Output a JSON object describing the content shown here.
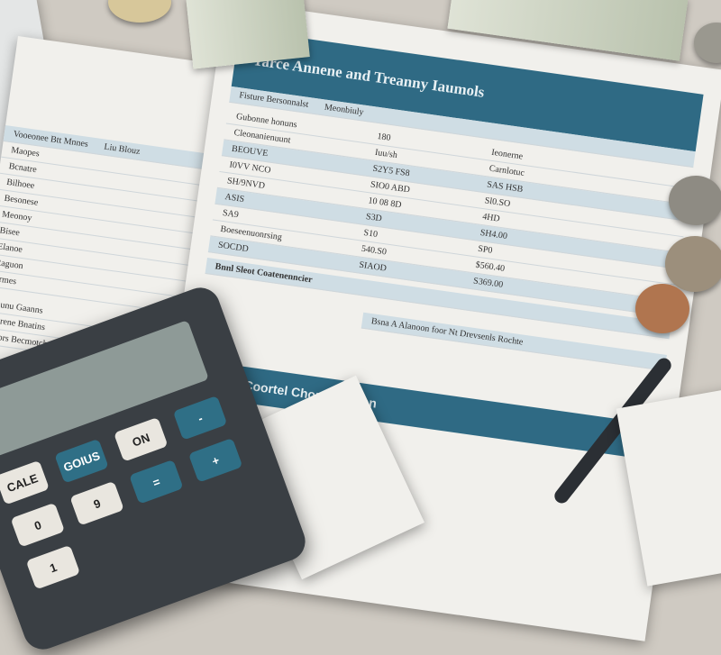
{
  "document": {
    "title": "Tarce Annene and Treanny Iaumols",
    "subheader_left": "Fisture Bersonnalst",
    "subheader_right": "Meonbiuly",
    "section": "Coortel Chore Tlo Han",
    "sub_section": "Bnnl Sleot Coatenenncier",
    "band2": "Bsna A Alanoon foor Nt Drevsenls Rochte",
    "rows": [
      [
        "Gubonne honuns",
        "180",
        "Ieonerne"
      ],
      [
        "Cleonanienuunt",
        "Iuu/sh",
        "Carnlotuc"
      ],
      [
        "BEOUVE",
        "S2Y5 FS8",
        "SAS HSB"
      ],
      [
        "I0VV NCO",
        "SIO0 ABD",
        "Sl0.SO"
      ],
      [
        "SH/9NVD",
        "10 08 8D",
        "4HD"
      ],
      [
        "ASIS",
        "S3D",
        "SH4.00"
      ],
      [
        "SA9",
        "S10",
        "SP0"
      ],
      [
        "Boeseenuonrsing",
        "540.S0",
        "$560.40"
      ],
      [
        "SOCDD",
        "SIAOD",
        "S369.00"
      ]
    ]
  },
  "left_sheet": {
    "header": "Vooeonee Btt Mnnes",
    "header2": "Liu Blouz",
    "rows": [
      "Maopes",
      "Bcnatre",
      "Bilhoee",
      "Besonese",
      "Meonoy",
      "Bisee",
      "Elanoe",
      "Raguon",
      "Brmes"
    ],
    "footer": [
      "Oounu Gaanns",
      "Glarene Bnatins",
      "Carors Becmotchelle"
    ]
  },
  "calculator": {
    "keys": [
      "CALE",
      "GOIUS",
      "ON",
      "0",
      "9",
      "1",
      "=",
      "+",
      "-"
    ]
  }
}
